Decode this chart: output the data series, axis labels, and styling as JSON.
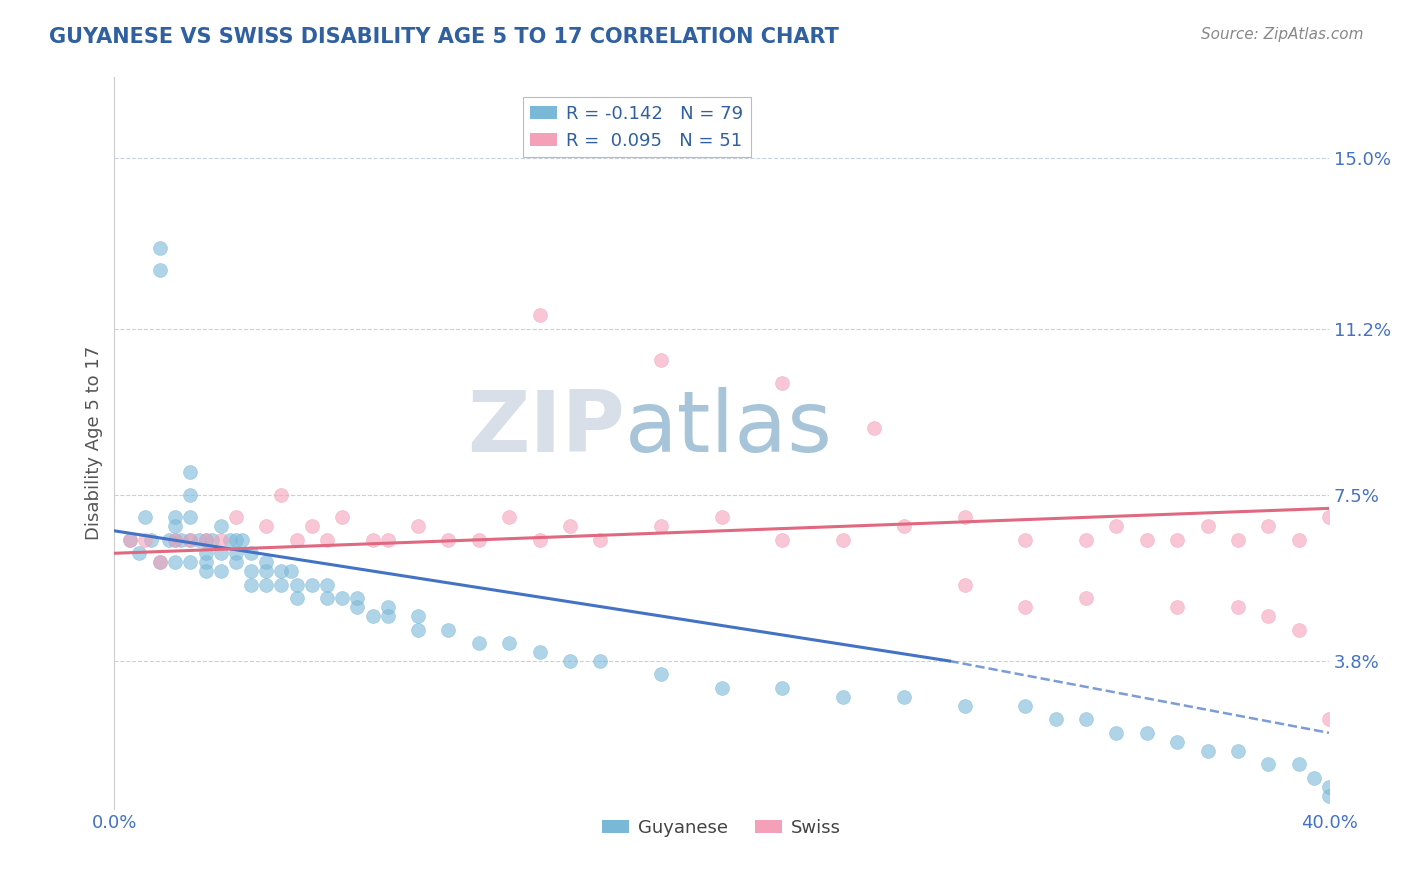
{
  "title": "GUYANESE VS SWISS DISABILITY AGE 5 TO 17 CORRELATION CHART",
  "source_text": "Source: ZipAtlas.com",
  "ylabel": "Disability Age 5 to 17",
  "xlim": [
    0.0,
    0.4
  ],
  "ylim": [
    0.005,
    0.168
  ],
  "yticks": [
    0.038,
    0.075,
    0.112,
    0.15
  ],
  "ytick_labels": [
    "3.8%",
    "7.5%",
    "11.2%",
    "15.0%"
  ],
  "xticks": [
    0.0,
    0.4
  ],
  "xtick_labels": [
    "0.0%",
    "40.0%"
  ],
  "legend_title_guyanese": "Guyanese",
  "legend_title_swiss": "Swiss",
  "guyanese_color": "#7ab8d8",
  "swiss_color": "#f4a0b8",
  "guyanese_line_color": "#4472c4",
  "swiss_line_color": "#e06880",
  "watermark_zip": "ZIP",
  "watermark_atlas": "atlas",
  "watermark_color_zip": "#d0d8e8",
  "watermark_color_atlas": "#a8c8e0",
  "title_color": "#3060a0",
  "tick_color": "#4472c4",
  "background_color": "#ffffff",
  "grid_color": "#c8d0dc",
  "R_guyanese": -0.142,
  "N_guyanese": 79,
  "R_swiss": 0.095,
  "N_swiss": 51,
  "guyanese_x": [
    0.005,
    0.008,
    0.01,
    0.012,
    0.015,
    0.015,
    0.015,
    0.018,
    0.02,
    0.02,
    0.02,
    0.02,
    0.022,
    0.025,
    0.025,
    0.025,
    0.025,
    0.025,
    0.028,
    0.03,
    0.03,
    0.03,
    0.03,
    0.032,
    0.035,
    0.035,
    0.035,
    0.038,
    0.04,
    0.04,
    0.04,
    0.042,
    0.045,
    0.045,
    0.045,
    0.05,
    0.05,
    0.05,
    0.055,
    0.055,
    0.058,
    0.06,
    0.06,
    0.065,
    0.07,
    0.07,
    0.075,
    0.08,
    0.08,
    0.085,
    0.09,
    0.09,
    0.1,
    0.1,
    0.11,
    0.12,
    0.13,
    0.14,
    0.15,
    0.16,
    0.18,
    0.2,
    0.22,
    0.24,
    0.26,
    0.28,
    0.3,
    0.31,
    0.32,
    0.33,
    0.34,
    0.35,
    0.36,
    0.37,
    0.38,
    0.39,
    0.395,
    0.4,
    0.4
  ],
  "guyanese_y": [
    0.065,
    0.062,
    0.07,
    0.065,
    0.125,
    0.13,
    0.06,
    0.065,
    0.07,
    0.065,
    0.06,
    0.068,
    0.065,
    0.08,
    0.075,
    0.07,
    0.065,
    0.06,
    0.065,
    0.065,
    0.06,
    0.058,
    0.062,
    0.065,
    0.068,
    0.062,
    0.058,
    0.065,
    0.062,
    0.065,
    0.06,
    0.065,
    0.062,
    0.058,
    0.055,
    0.06,
    0.058,
    0.055,
    0.058,
    0.055,
    0.058,
    0.055,
    0.052,
    0.055,
    0.052,
    0.055,
    0.052,
    0.05,
    0.052,
    0.048,
    0.05,
    0.048,
    0.048,
    0.045,
    0.045,
    0.042,
    0.042,
    0.04,
    0.038,
    0.038,
    0.035,
    0.032,
    0.032,
    0.03,
    0.03,
    0.028,
    0.028,
    0.025,
    0.025,
    0.022,
    0.022,
    0.02,
    0.018,
    0.018,
    0.015,
    0.015,
    0.012,
    0.01,
    0.008
  ],
  "swiss_x": [
    0.005,
    0.01,
    0.015,
    0.02,
    0.025,
    0.03,
    0.035,
    0.04,
    0.05,
    0.055,
    0.06,
    0.065,
    0.07,
    0.075,
    0.085,
    0.09,
    0.1,
    0.11,
    0.12,
    0.13,
    0.14,
    0.15,
    0.16,
    0.18,
    0.2,
    0.22,
    0.24,
    0.26,
    0.28,
    0.3,
    0.32,
    0.33,
    0.34,
    0.35,
    0.36,
    0.37,
    0.38,
    0.39,
    0.4,
    0.14,
    0.18,
    0.22,
    0.25,
    0.28,
    0.32,
    0.35,
    0.37,
    0.38,
    0.39,
    0.4,
    0.3
  ],
  "swiss_y": [
    0.065,
    0.065,
    0.06,
    0.065,
    0.065,
    0.065,
    0.065,
    0.07,
    0.068,
    0.075,
    0.065,
    0.068,
    0.065,
    0.07,
    0.065,
    0.065,
    0.068,
    0.065,
    0.065,
    0.07,
    0.065,
    0.068,
    0.065,
    0.068,
    0.07,
    0.065,
    0.065,
    0.068,
    0.07,
    0.065,
    0.065,
    0.068,
    0.065,
    0.065,
    0.068,
    0.065,
    0.068,
    0.065,
    0.07,
    0.115,
    0.105,
    0.1,
    0.09,
    0.055,
    0.052,
    0.05,
    0.05,
    0.048,
    0.045,
    0.025,
    0.05
  ],
  "trend_guyanese_x0": 0.0,
  "trend_guyanese_y0": 0.067,
  "trend_guyanese_x1": 0.275,
  "trend_guyanese_y1": 0.038,
  "trend_guyanese_x2": 0.4,
  "trend_guyanese_y2": 0.022,
  "trend_swiss_x0": 0.0,
  "trend_swiss_y0": 0.062,
  "trend_swiss_x1": 0.4,
  "trend_swiss_y1": 0.072
}
